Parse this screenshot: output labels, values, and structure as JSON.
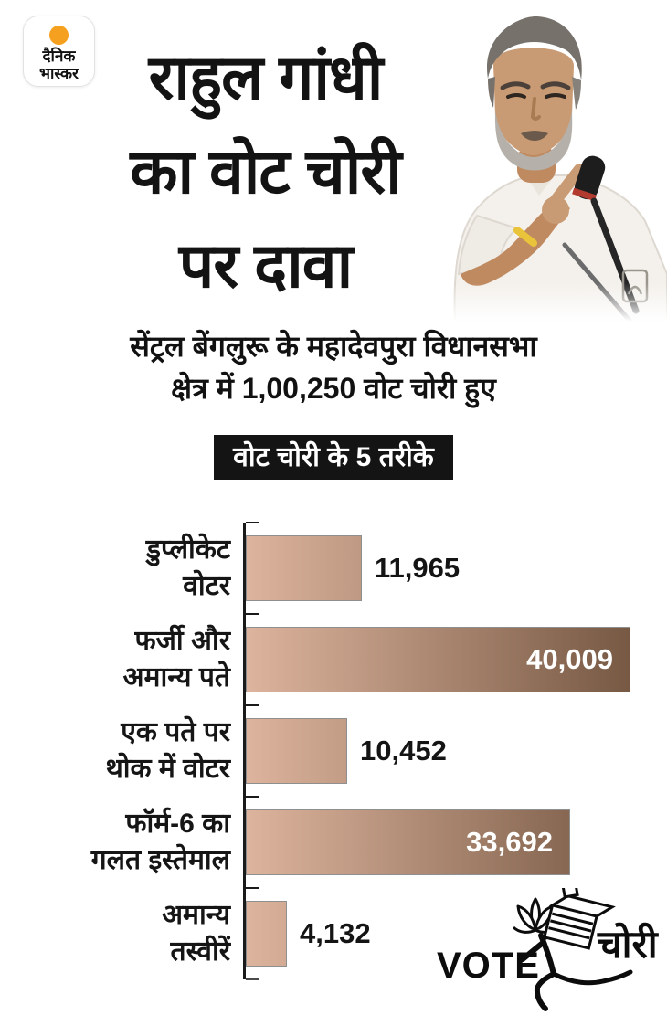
{
  "brand": {
    "name_line1": "दैनिक",
    "name_line2": "भास्कर",
    "sun_color": "#f5a01e"
  },
  "header": {
    "title_lines": [
      "राहुल गांधी",
      "का वोट चोरी",
      "पर दावा"
    ],
    "subtitle_lines": [
      "सेंट्रल बेंगलुरू के महादेवपुरा विधानसभा",
      "क्षेत्र में 1,00,250 वोट चोरी हुए"
    ],
    "claimed_total": "1,00,250",
    "badge": "वोट चोरी के 5 तरीके"
  },
  "chart_data": {
    "type": "bar",
    "orientation": "horizontal",
    "title": "वोट चोरी के 5 तरीके",
    "categories": [
      "डुप्लीकेट वोटर",
      "फर्जी और अमान्य पते",
      "एक पते पर थोक में वोटर",
      "फॉर्म-6 का गलत इस्तेमाल",
      "अमान्य तस्वीरें"
    ],
    "label_lines": [
      [
        "डुप्लीकेट",
        "वोटर"
      ],
      [
        "फर्जी और",
        "अमान्य पते"
      ],
      [
        "एक पते पर",
        "थोक में वोटर"
      ],
      [
        "फॉर्म-6 का",
        "गलत इस्तेमाल"
      ],
      [
        "अमान्य",
        "तस्वीरें"
      ]
    ],
    "values": [
      11965,
      40009,
      10452,
      33692,
      4132
    ],
    "value_labels": [
      "11,965",
      "40,009",
      "10,452",
      "33,692",
      "4,132"
    ],
    "xlim": [
      0,
      40009
    ],
    "grid": false,
    "legend": false,
    "bar_color_light": "#ddb49d",
    "bar_color_dark": "#775944"
  },
  "footer_logo": {
    "vote_text": "VOTE",
    "chori_text": "चोरी",
    "icons": [
      "lotus-icon",
      "running-figure-icon",
      "ballot-box-icon"
    ]
  },
  "colors": {
    "background": "#ffffff",
    "text": "#141414",
    "badge_bg": "#141414",
    "badge_text": "#ffffff",
    "bar_border": "#8f8f8f",
    "axis": "#1a1a1a"
  }
}
